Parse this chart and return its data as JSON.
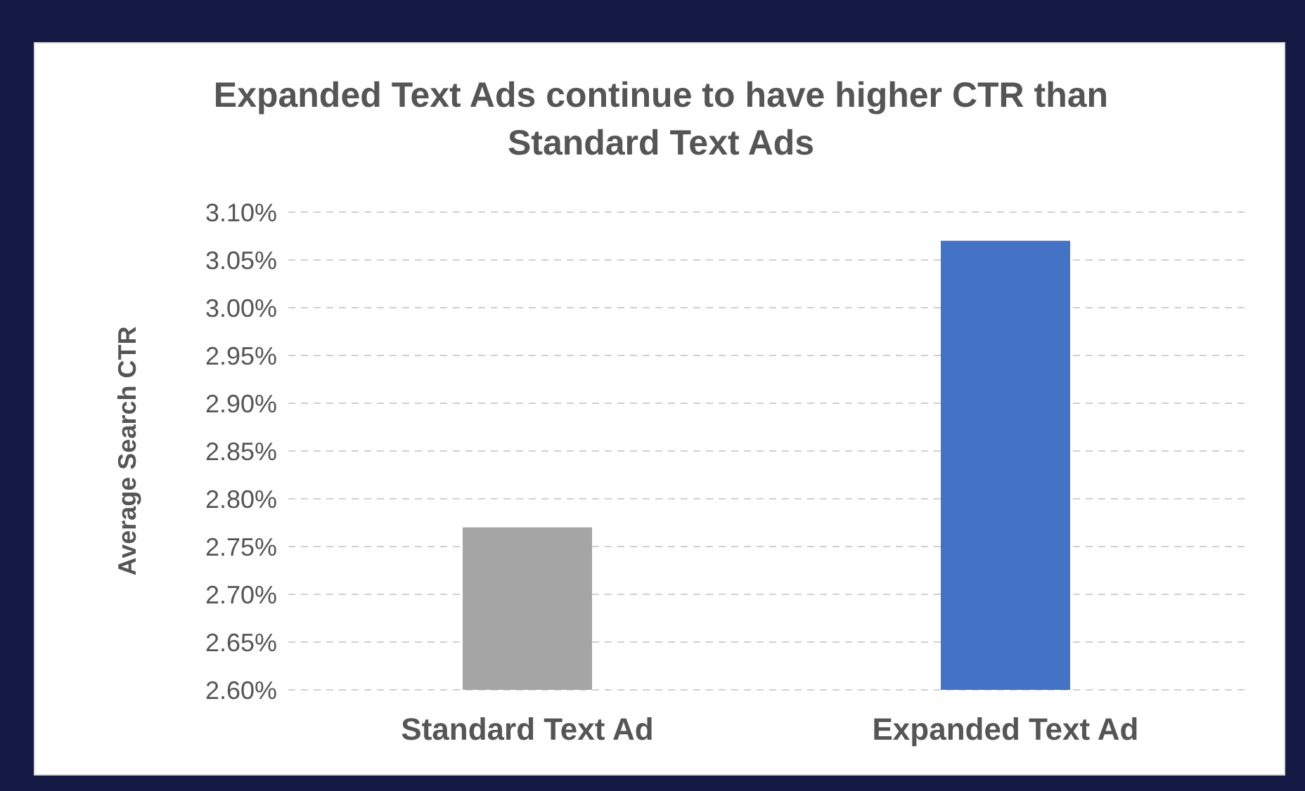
{
  "chart_data": {
    "type": "bar",
    "title": "Expanded Text Ads continue to have higher CTR than Standard Text Ads",
    "ylabel": "Average Search CTR",
    "categories": [
      "Standard Text Ad",
      "Expanded Text Ad"
    ],
    "values": [
      2.77,
      3.07
    ],
    "colors": [
      "#a5a5a5",
      "#4472c4"
    ],
    "ylim": [
      2.6,
      3.1
    ],
    "yticks": [
      {
        "value": 2.6,
        "label": "2.60%"
      },
      {
        "value": 2.65,
        "label": "2.65%"
      },
      {
        "value": 2.7,
        "label": "2.70%"
      },
      {
        "value": 2.75,
        "label": "2.75%"
      },
      {
        "value": 2.8,
        "label": "2.80%"
      },
      {
        "value": 2.85,
        "label": "2.85%"
      },
      {
        "value": 2.9,
        "label": "2.90%"
      },
      {
        "value": 2.95,
        "label": "2.95%"
      },
      {
        "value": 3.0,
        "label": "3.00%"
      },
      {
        "value": 3.05,
        "label": "3.05%"
      },
      {
        "value": 3.1,
        "label": "3.10%"
      }
    ],
    "grid": "y"
  }
}
